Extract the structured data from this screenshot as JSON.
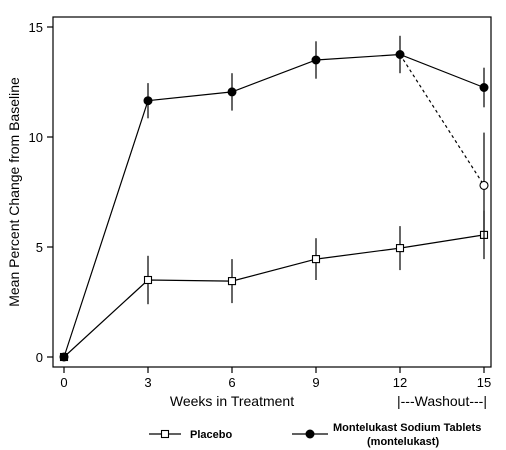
{
  "chart_data": {
    "type": "line",
    "xlabel": "Weeks in Treatment",
    "washout_label": "|---Washout---|",
    "ylabel": "Mean Percent Change from Baseline",
    "x_ticks": [
      0,
      3,
      6,
      9,
      12,
      15
    ],
    "y_ticks": [
      0,
      5,
      10,
      15
    ],
    "xlim": [
      0,
      15
    ],
    "ylim": [
      0,
      15
    ],
    "grid": false,
    "legend_position": "bottom",
    "series": [
      {
        "name": "Placebo",
        "marker": "open-square",
        "line_style": "solid",
        "points": [
          {
            "x": 0,
            "y": 0,
            "err": 0
          },
          {
            "x": 3,
            "y": 3.5,
            "err": 1.1
          },
          {
            "x": 6,
            "y": 3.45,
            "err": 1.0
          },
          {
            "x": 9,
            "y": 4.45,
            "err": 0.95
          },
          {
            "x": 12,
            "y": 4.95,
            "err": 1.0
          },
          {
            "x": 15,
            "y": 5.55,
            "err": 1.1
          }
        ]
      },
      {
        "name": "Montelukast Sodium Tablets (montelukast)",
        "legend_lines": [
          "Montelukast Sodium Tablets",
          "(montelukast)"
        ],
        "marker": "filled-circle",
        "line_style": "solid",
        "points": [
          {
            "x": 0,
            "y": 0,
            "err": 0
          },
          {
            "x": 3,
            "y": 11.65,
            "err": 0.8
          },
          {
            "x": 6,
            "y": 12.05,
            "err": 0.85
          },
          {
            "x": 9,
            "y": 13.5,
            "err": 0.85
          },
          {
            "x": 12,
            "y": 13.75,
            "err": 0.85
          },
          {
            "x": 15,
            "y": 12.25,
            "err": 0.9
          }
        ]
      },
      {
        "name": "Montelukast washout",
        "marker": "open-circle",
        "line_style": "dashed",
        "points": [
          {
            "x": 12,
            "y": 13.75,
            "err": 0
          },
          {
            "x": 15,
            "y": 7.8,
            "err": 2.4
          }
        ]
      }
    ]
  }
}
